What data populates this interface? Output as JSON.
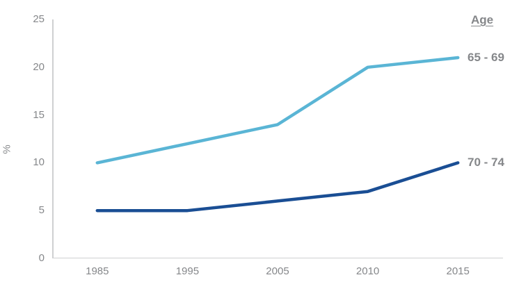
{
  "chart_data": {
    "type": "line",
    "title": "",
    "xlabel": "",
    "ylabel": "%",
    "legend_title": "Age",
    "categories": [
      "1985",
      "1995",
      "2005",
      "2010",
      "2015"
    ],
    "series": [
      {
        "name": "65 - 69",
        "values": [
          10,
          12,
          14,
          20,
          21
        ],
        "color": "#5ab5d5"
      },
      {
        "name": "70 - 74",
        "values": [
          5,
          5,
          6,
          7,
          10
        ],
        "color": "#1a4e94"
      }
    ],
    "y_ticks": [
      0,
      5,
      10,
      15,
      20,
      25
    ],
    "ylim": [
      0,
      25
    ],
    "grid": false,
    "legend_position": "labels-at-line-ends"
  },
  "colors": {
    "axis_text": "#85878a",
    "axis_line": "#cfd0d1",
    "series_65_69": "#5ab5d5",
    "series_70_74": "#1a4e94"
  }
}
